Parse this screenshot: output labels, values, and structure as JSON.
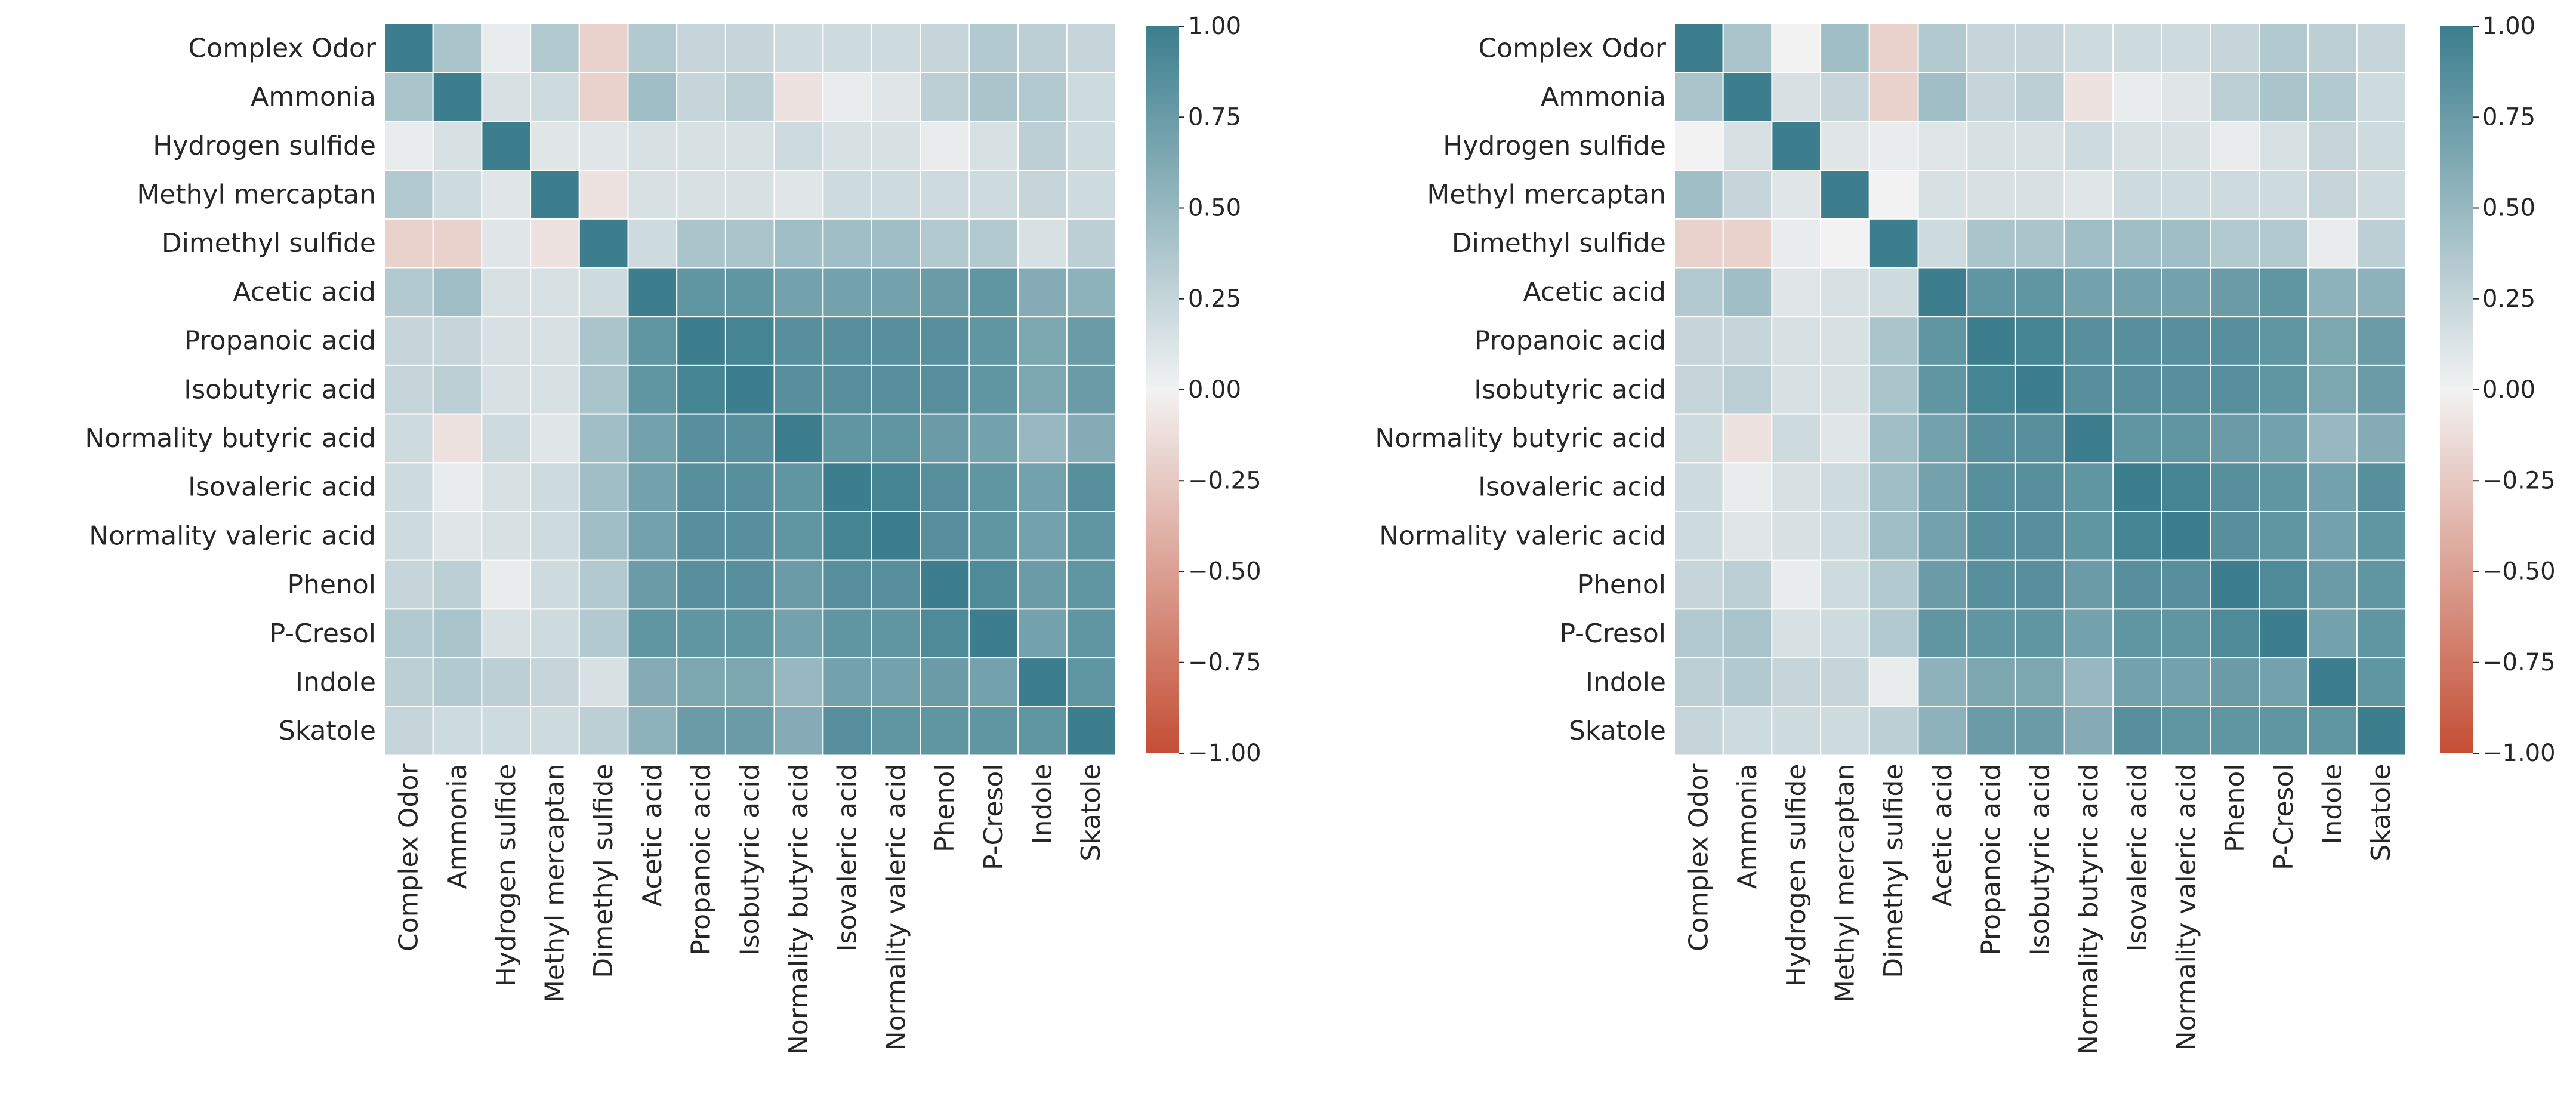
{
  "chart_data": [
    {
      "type": "heatmap",
      "title": "",
      "xlabel": "",
      "ylabel": "",
      "labels": [
        "Complex Odor",
        "Ammonia",
        "Hydrogen sulfide",
        "Methyl mercaptan",
        "Dimethyl sulfide",
        "Acetic acid",
        "Propanoic acid",
        "Isobutyric acid",
        "Normality butyric acid",
        "Isovaleric acid",
        "Normality valeric acid",
        "Phenol",
        "P-Cresol",
        "Indole",
        "Skatole"
      ],
      "matrix": [
        [
          1.0,
          0.4,
          0.05,
          0.35,
          -0.2,
          0.35,
          0.25,
          0.25,
          0.2,
          0.2,
          0.2,
          0.25,
          0.35,
          0.3,
          0.25
        ],
        [
          0.4,
          1.0,
          0.15,
          0.2,
          -0.2,
          0.45,
          0.25,
          0.3,
          -0.1,
          0.05,
          0.1,
          0.3,
          0.4,
          0.35,
          0.2
        ],
        [
          0.05,
          0.15,
          1.0,
          0.1,
          0.1,
          0.15,
          0.15,
          0.15,
          0.2,
          0.15,
          0.15,
          0.05,
          0.15,
          0.3,
          0.2
        ],
        [
          0.35,
          0.2,
          0.1,
          1.0,
          -0.1,
          0.15,
          0.15,
          0.15,
          0.1,
          0.2,
          0.2,
          0.2,
          0.2,
          0.25,
          0.2
        ],
        [
          -0.2,
          -0.2,
          0.1,
          -0.1,
          1.0,
          0.2,
          0.4,
          0.4,
          0.45,
          0.45,
          0.45,
          0.35,
          0.35,
          0.15,
          0.3
        ],
        [
          0.35,
          0.45,
          0.15,
          0.15,
          0.2,
          1.0,
          0.8,
          0.8,
          0.7,
          0.7,
          0.7,
          0.75,
          0.8,
          0.6,
          0.55
        ],
        [
          0.25,
          0.25,
          0.15,
          0.15,
          0.4,
          0.8,
          1.0,
          0.95,
          0.85,
          0.85,
          0.85,
          0.85,
          0.8,
          0.65,
          0.75
        ],
        [
          0.25,
          0.3,
          0.15,
          0.15,
          0.4,
          0.8,
          0.95,
          1.0,
          0.85,
          0.85,
          0.85,
          0.85,
          0.8,
          0.65,
          0.75
        ],
        [
          0.2,
          -0.1,
          0.2,
          0.1,
          0.45,
          0.7,
          0.85,
          0.85,
          1.0,
          0.8,
          0.8,
          0.75,
          0.7,
          0.5,
          0.6
        ],
        [
          0.2,
          0.05,
          0.15,
          0.2,
          0.45,
          0.7,
          0.85,
          0.85,
          0.8,
          1.0,
          0.95,
          0.85,
          0.8,
          0.7,
          0.85
        ],
        [
          0.2,
          0.1,
          0.15,
          0.2,
          0.45,
          0.7,
          0.85,
          0.85,
          0.8,
          0.95,
          1.0,
          0.85,
          0.8,
          0.7,
          0.8
        ],
        [
          0.25,
          0.3,
          0.05,
          0.2,
          0.35,
          0.75,
          0.85,
          0.85,
          0.75,
          0.85,
          0.85,
          1.0,
          0.9,
          0.75,
          0.8
        ],
        [
          0.35,
          0.4,
          0.15,
          0.2,
          0.35,
          0.8,
          0.8,
          0.8,
          0.7,
          0.8,
          0.8,
          0.9,
          1.0,
          0.7,
          0.8
        ],
        [
          0.3,
          0.35,
          0.3,
          0.25,
          0.15,
          0.6,
          0.65,
          0.65,
          0.5,
          0.7,
          0.7,
          0.75,
          0.7,
          1.0,
          0.8
        ],
        [
          0.25,
          0.2,
          0.2,
          0.2,
          0.3,
          0.55,
          0.75,
          0.75,
          0.6,
          0.85,
          0.8,
          0.8,
          0.8,
          0.8,
          1.0
        ]
      ],
      "vmin": -1.0,
      "vmax": 1.0,
      "colorbar_ticks": [
        "1.00",
        "0.75",
        "0.50",
        "0.25",
        "0.00",
        "−0.25",
        "−0.50",
        "−0.75",
        "−1.00"
      ],
      "colormap": {
        "negative": "#C44E34",
        "center": "#F2F2F2",
        "positive": "#3C7E8E"
      }
    },
    {
      "type": "heatmap",
      "title": "",
      "xlabel": "",
      "ylabel": "",
      "labels": [
        "Complex Odor",
        "Ammonia",
        "Hydrogen sulfide",
        "Methyl mercaptan",
        "Dimethyl sulfide",
        "Acetic acid",
        "Propanoic acid",
        "Isobutyric acid",
        "Normality butyric acid",
        "Isovaleric acid",
        "Normality valeric acid",
        "Phenol",
        "P-Cresol",
        "Indole",
        "Skatole"
      ],
      "matrix": [
        [
          1.0,
          0.4,
          0.0,
          0.45,
          -0.2,
          0.35,
          0.25,
          0.25,
          0.2,
          0.2,
          0.2,
          0.25,
          0.35,
          0.3,
          0.25
        ],
        [
          0.4,
          1.0,
          0.15,
          0.25,
          -0.2,
          0.45,
          0.25,
          0.3,
          -0.1,
          0.05,
          0.1,
          0.3,
          0.4,
          0.35,
          0.2
        ],
        [
          0.0,
          0.15,
          1.0,
          0.1,
          0.05,
          0.1,
          0.15,
          0.15,
          0.2,
          0.15,
          0.15,
          0.05,
          0.15,
          0.25,
          0.2
        ],
        [
          0.45,
          0.25,
          0.1,
          1.0,
          0.0,
          0.15,
          0.15,
          0.15,
          0.1,
          0.2,
          0.2,
          0.2,
          0.2,
          0.25,
          0.2
        ],
        [
          -0.2,
          -0.2,
          0.05,
          0.0,
          1.0,
          0.2,
          0.4,
          0.4,
          0.45,
          0.45,
          0.45,
          0.35,
          0.35,
          0.05,
          0.3
        ],
        [
          0.35,
          0.45,
          0.1,
          0.15,
          0.2,
          1.0,
          0.8,
          0.8,
          0.7,
          0.7,
          0.7,
          0.75,
          0.8,
          0.55,
          0.55
        ],
        [
          0.25,
          0.25,
          0.15,
          0.15,
          0.4,
          0.8,
          1.0,
          0.95,
          0.85,
          0.85,
          0.85,
          0.85,
          0.8,
          0.65,
          0.75
        ],
        [
          0.25,
          0.3,
          0.15,
          0.15,
          0.4,
          0.8,
          0.95,
          1.0,
          0.85,
          0.85,
          0.85,
          0.85,
          0.8,
          0.65,
          0.75
        ],
        [
          0.2,
          -0.1,
          0.2,
          0.1,
          0.45,
          0.7,
          0.85,
          0.85,
          1.0,
          0.8,
          0.8,
          0.75,
          0.7,
          0.5,
          0.6
        ],
        [
          0.2,
          0.05,
          0.15,
          0.2,
          0.45,
          0.7,
          0.85,
          0.85,
          0.8,
          1.0,
          0.95,
          0.85,
          0.8,
          0.7,
          0.85
        ],
        [
          0.2,
          0.1,
          0.15,
          0.2,
          0.45,
          0.7,
          0.85,
          0.85,
          0.8,
          0.95,
          1.0,
          0.85,
          0.8,
          0.7,
          0.8
        ],
        [
          0.25,
          0.3,
          0.05,
          0.2,
          0.35,
          0.75,
          0.85,
          0.85,
          0.75,
          0.85,
          0.85,
          1.0,
          0.9,
          0.75,
          0.8
        ],
        [
          0.35,
          0.4,
          0.15,
          0.2,
          0.35,
          0.8,
          0.8,
          0.8,
          0.7,
          0.8,
          0.8,
          0.9,
          1.0,
          0.7,
          0.8
        ],
        [
          0.3,
          0.35,
          0.25,
          0.25,
          0.05,
          0.55,
          0.65,
          0.65,
          0.5,
          0.7,
          0.7,
          0.75,
          0.7,
          1.0,
          0.8
        ],
        [
          0.25,
          0.2,
          0.2,
          0.2,
          0.3,
          0.55,
          0.75,
          0.75,
          0.6,
          0.85,
          0.8,
          0.8,
          0.8,
          0.8,
          1.0
        ]
      ],
      "vmin": -1.0,
      "vmax": 1.0,
      "colorbar_ticks": [
        "1.00",
        "0.75",
        "0.50",
        "0.25",
        "0.00",
        "−0.25",
        "−0.50",
        "−0.75",
        "−1.00"
      ],
      "colormap": {
        "negative": "#C44E34",
        "center": "#F2F2F2",
        "positive": "#3C7E8E"
      }
    }
  ]
}
